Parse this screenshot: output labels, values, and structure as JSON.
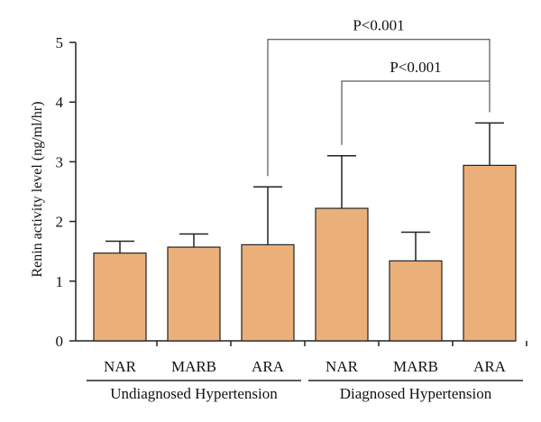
{
  "chart_data": {
    "type": "bar",
    "ylabel": "Renin activity level (ng/ml/hr)",
    "ylim": [
      0,
      5
    ],
    "yticks": [
      "0",
      "1",
      "2",
      "3",
      "4",
      "5"
    ],
    "categories": [
      "NAR",
      "MARB",
      "ARA",
      "NAR",
      "MARB",
      "ARA"
    ],
    "values": [
      1.47,
      1.57,
      1.61,
      2.22,
      1.34,
      2.94
    ],
    "errors": [
      0.2,
      0.22,
      0.97,
      0.88,
      0.48,
      0.71
    ],
    "groups": [
      {
        "label": "Undiagnosed Hypertension",
        "start": 0,
        "end": 2
      },
      {
        "label": "Diagnosed Hypertension",
        "start": 3,
        "end": 5
      }
    ],
    "annotations": [
      {
        "text": "P<0.001",
        "from": 2,
        "to": 5,
        "level": 5.05
      },
      {
        "text": "P<0.001",
        "from": 3,
        "to": 5,
        "level": 4.35
      }
    ],
    "bar_color": "#EBB07A",
    "grid": false
  }
}
